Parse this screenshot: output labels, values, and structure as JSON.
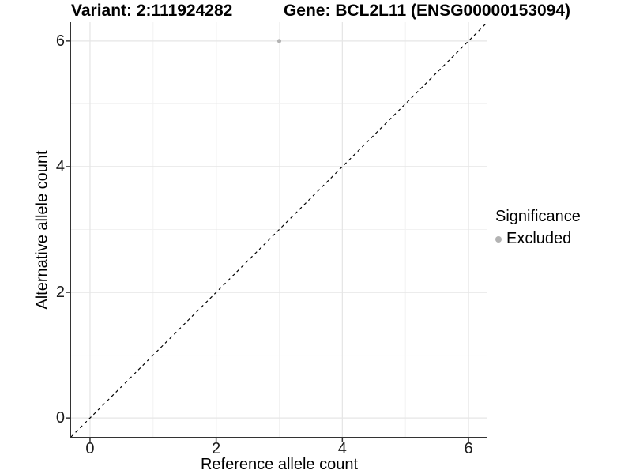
{
  "title": {
    "variant": "Variant: 2:111924282",
    "gene": "Gene: BCL2L11 (ENSG00000153094)"
  },
  "chart_data": {
    "type": "scatter",
    "title": "Variant: 2:111924282   Gene: BCL2L11 (ENSG00000153094)",
    "xlabel": "Reference allele count",
    "ylabel": "Alternative allele count",
    "xlim": [
      -0.3,
      6.3
    ],
    "ylim": [
      -0.3,
      6.3
    ],
    "x_ticks": [
      0,
      2,
      4,
      6
    ],
    "y_ticks": [
      0,
      2,
      4,
      6
    ],
    "x_tick_labels": [
      "0",
      "2",
      "4",
      "6"
    ],
    "y_tick_labels": [
      "0",
      "2",
      "4",
      "6"
    ],
    "minor_ticks": [
      1,
      3,
      5
    ],
    "grid": true,
    "series": [
      {
        "name": "Excluded",
        "color": "#b3b3b3",
        "points": [
          {
            "x": 3,
            "y": 6
          }
        ]
      }
    ],
    "reference_line": {
      "type": "identity",
      "style": "dashed",
      "from": [
        -0.3,
        -0.3
      ],
      "to": [
        6.3,
        6.3
      ]
    },
    "legend": {
      "title": "Significance",
      "position": "right",
      "items": [
        {
          "label": "Excluded",
          "color": "#b3b3b3"
        }
      ]
    }
  },
  "colors": {
    "point": "#b3b3b3",
    "grid_major": "#e6e6e6",
    "grid_minor": "#f2f2f2",
    "axis": "#333333",
    "reference_line": "#000000",
    "tick_text": "#1a1a1a"
  }
}
